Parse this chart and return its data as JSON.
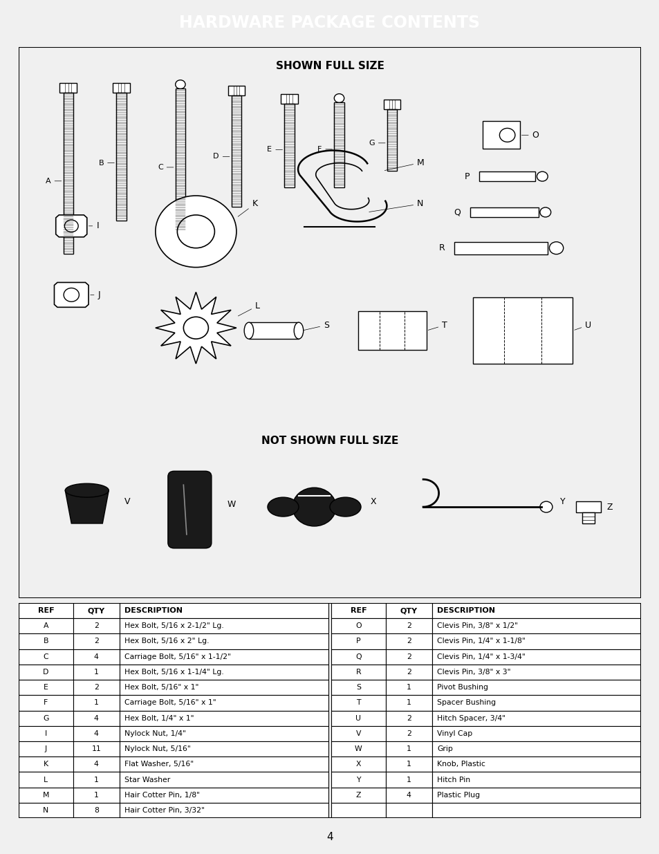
{
  "title": "HARDWARE PACKAGE CONTENTS",
  "title_bg": "#1a1a1a",
  "title_color": "#ffffff",
  "diagram_title1": "SHOWN FULL SIZE",
  "diagram_title2": "NOT SHOWN FULL SIZE",
  "page_number": "4",
  "table_left": [
    [
      "REF",
      "QTY",
      "DESCRIPTION"
    ],
    [
      "A",
      "2",
      "Hex Bolt, 5/16 x 2-1/2\" Lg."
    ],
    [
      "B",
      "2",
      "Hex Bolt, 5/16 x 2\" Lg."
    ],
    [
      "C",
      "4",
      "Carriage Bolt, 5/16\" x 1-1/2\""
    ],
    [
      "D",
      "1",
      "Hex Bolt, 5/16 x 1-1/4\" Lg."
    ],
    [
      "E",
      "2",
      "Hex Bolt, 5/16\" x 1\""
    ],
    [
      "F",
      "1",
      "Carriage Bolt, 5/16\" x 1\""
    ],
    [
      "G",
      "4",
      "Hex Bolt, 1/4\" x 1\""
    ],
    [
      "I",
      "4",
      "Nylock Nut, 1/4\""
    ],
    [
      "J",
      "11",
      "Nylock Nut, 5/16\""
    ],
    [
      "K",
      "4",
      "Flat Washer, 5/16\""
    ],
    [
      "L",
      "1",
      "Star Washer"
    ],
    [
      "M",
      "1",
      "Hair Cotter Pin, 1/8\""
    ],
    [
      "N",
      "8",
      "Hair Cotter Pin, 3/32\""
    ]
  ],
  "table_right": [
    [
      "REF",
      "QTY",
      "DESCRIPTION"
    ],
    [
      "O",
      "2",
      "Clevis Pin, 3/8\" x 1/2\""
    ],
    [
      "P",
      "2",
      "Clevis Pin, 1/4\" x 1-1/8\""
    ],
    [
      "Q",
      "2",
      "Clevis Pin, 1/4\" x 1-3/4\""
    ],
    [
      "R",
      "2",
      "Clevis Pin, 3/8\" x 3\""
    ],
    [
      "S",
      "1",
      "Pivot Bushing"
    ],
    [
      "T",
      "1",
      "Spacer Bushing"
    ],
    [
      "U",
      "2",
      "Hitch Spacer, 3/4\""
    ],
    [
      "V",
      "2",
      "Vinyl Cap"
    ],
    [
      "W",
      "1",
      "Grip"
    ],
    [
      "X",
      "1",
      "Knob, Plastic"
    ],
    [
      "Y",
      "1",
      "Hitch Pin"
    ],
    [
      "Z",
      "4",
      "Plastic Plug"
    ],
    [
      "",
      "",
      ""
    ]
  ],
  "background_color": "#ffffff"
}
